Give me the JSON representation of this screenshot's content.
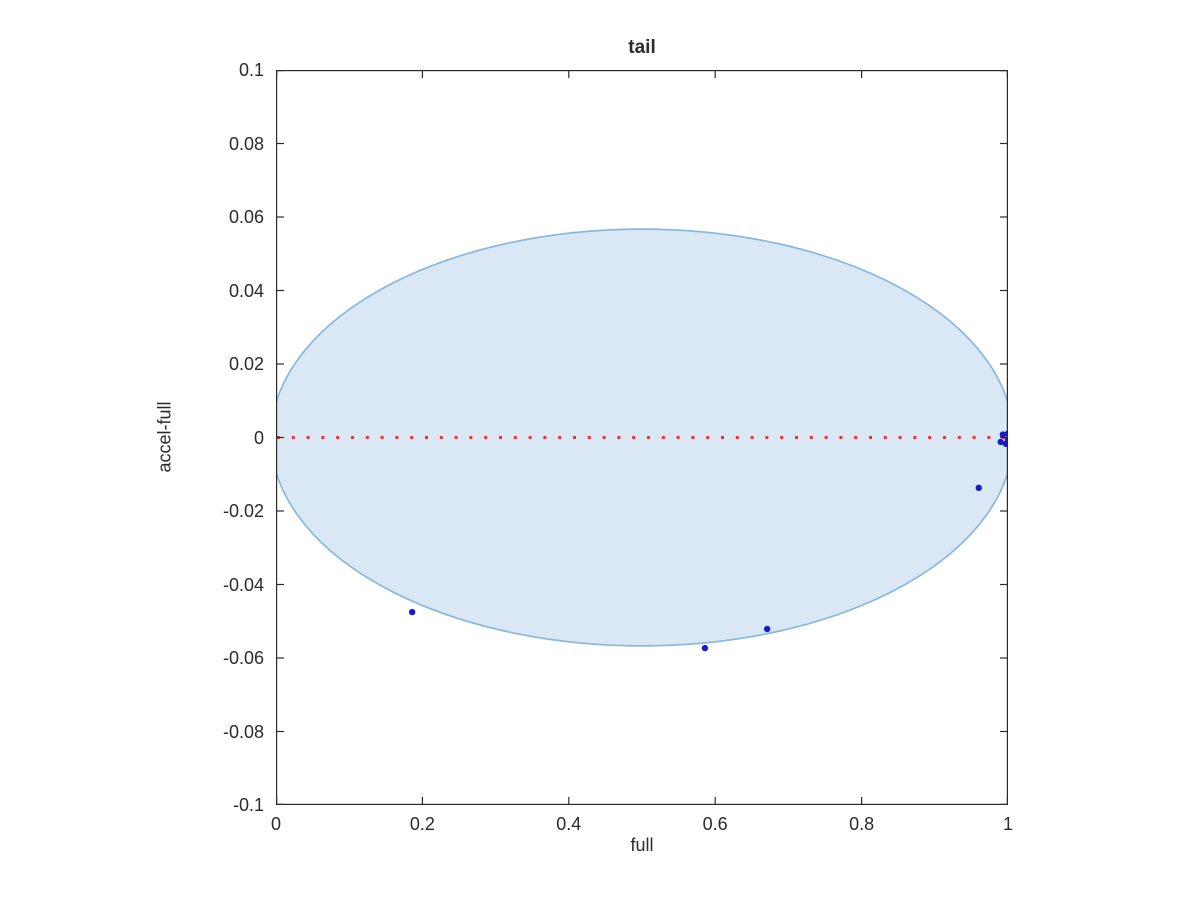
{
  "chart_data": {
    "type": "scatter",
    "title": "tail",
    "xlabel": "full",
    "ylabel": "accel-full",
    "xlim": [
      0,
      1
    ],
    "ylim": [
      -0.1,
      0.1
    ],
    "grid": false,
    "box": true,
    "axis_color": "#2b2b2b",
    "x_ticks": {
      "values": [
        0,
        0.2,
        0.4,
        0.6,
        0.8,
        1
      ],
      "labels": [
        "0",
        "0.2",
        "0.4",
        "0.6",
        "0.8",
        "1"
      ]
    },
    "y_ticks": {
      "values": [
        0.1,
        0.08,
        0.06,
        0.04,
        0.02,
        0,
        -0.02,
        -0.04,
        -0.06,
        -0.08,
        -0.1
      ],
      "labels": [
        "0.1",
        "0.08",
        "0.06",
        "0.04",
        "0.02",
        "0",
        "-0.02",
        "-0.04",
        "-0.06",
        "-0.08",
        "-0.1"
      ]
    },
    "confidence_band": {
      "shape": "ellipse",
      "cx": 0.5,
      "cy": 0,
      "rx": 0.507,
      "ry": 0.0567,
      "fill": "#d9e8f4",
      "stroke": "#8ab8dc",
      "stroke_width": 1.7,
      "clipped_to_axes": true
    },
    "reference_line": {
      "y": 0,
      "style": "dotted",
      "color": "#e83535",
      "dot_size": 3,
      "gap": 11.8
    },
    "series": [
      {
        "name": "points",
        "marker": "dot",
        "color": "#1a1acd",
        "radius": 3.2,
        "points": [
          [
            0.186,
            -0.0475
          ],
          [
            0.586,
            -0.0573
          ],
          [
            0.671,
            -0.0521
          ],
          [
            0.96,
            -0.0137
          ],
          [
            0.993,
            0.0008
          ],
          [
            1.0,
            0.0011
          ],
          [
            0.99,
            -0.0012
          ],
          [
            0.997,
            -0.0017
          ],
          [
            1.0,
            -0.0005
          ]
        ]
      }
    ]
  }
}
